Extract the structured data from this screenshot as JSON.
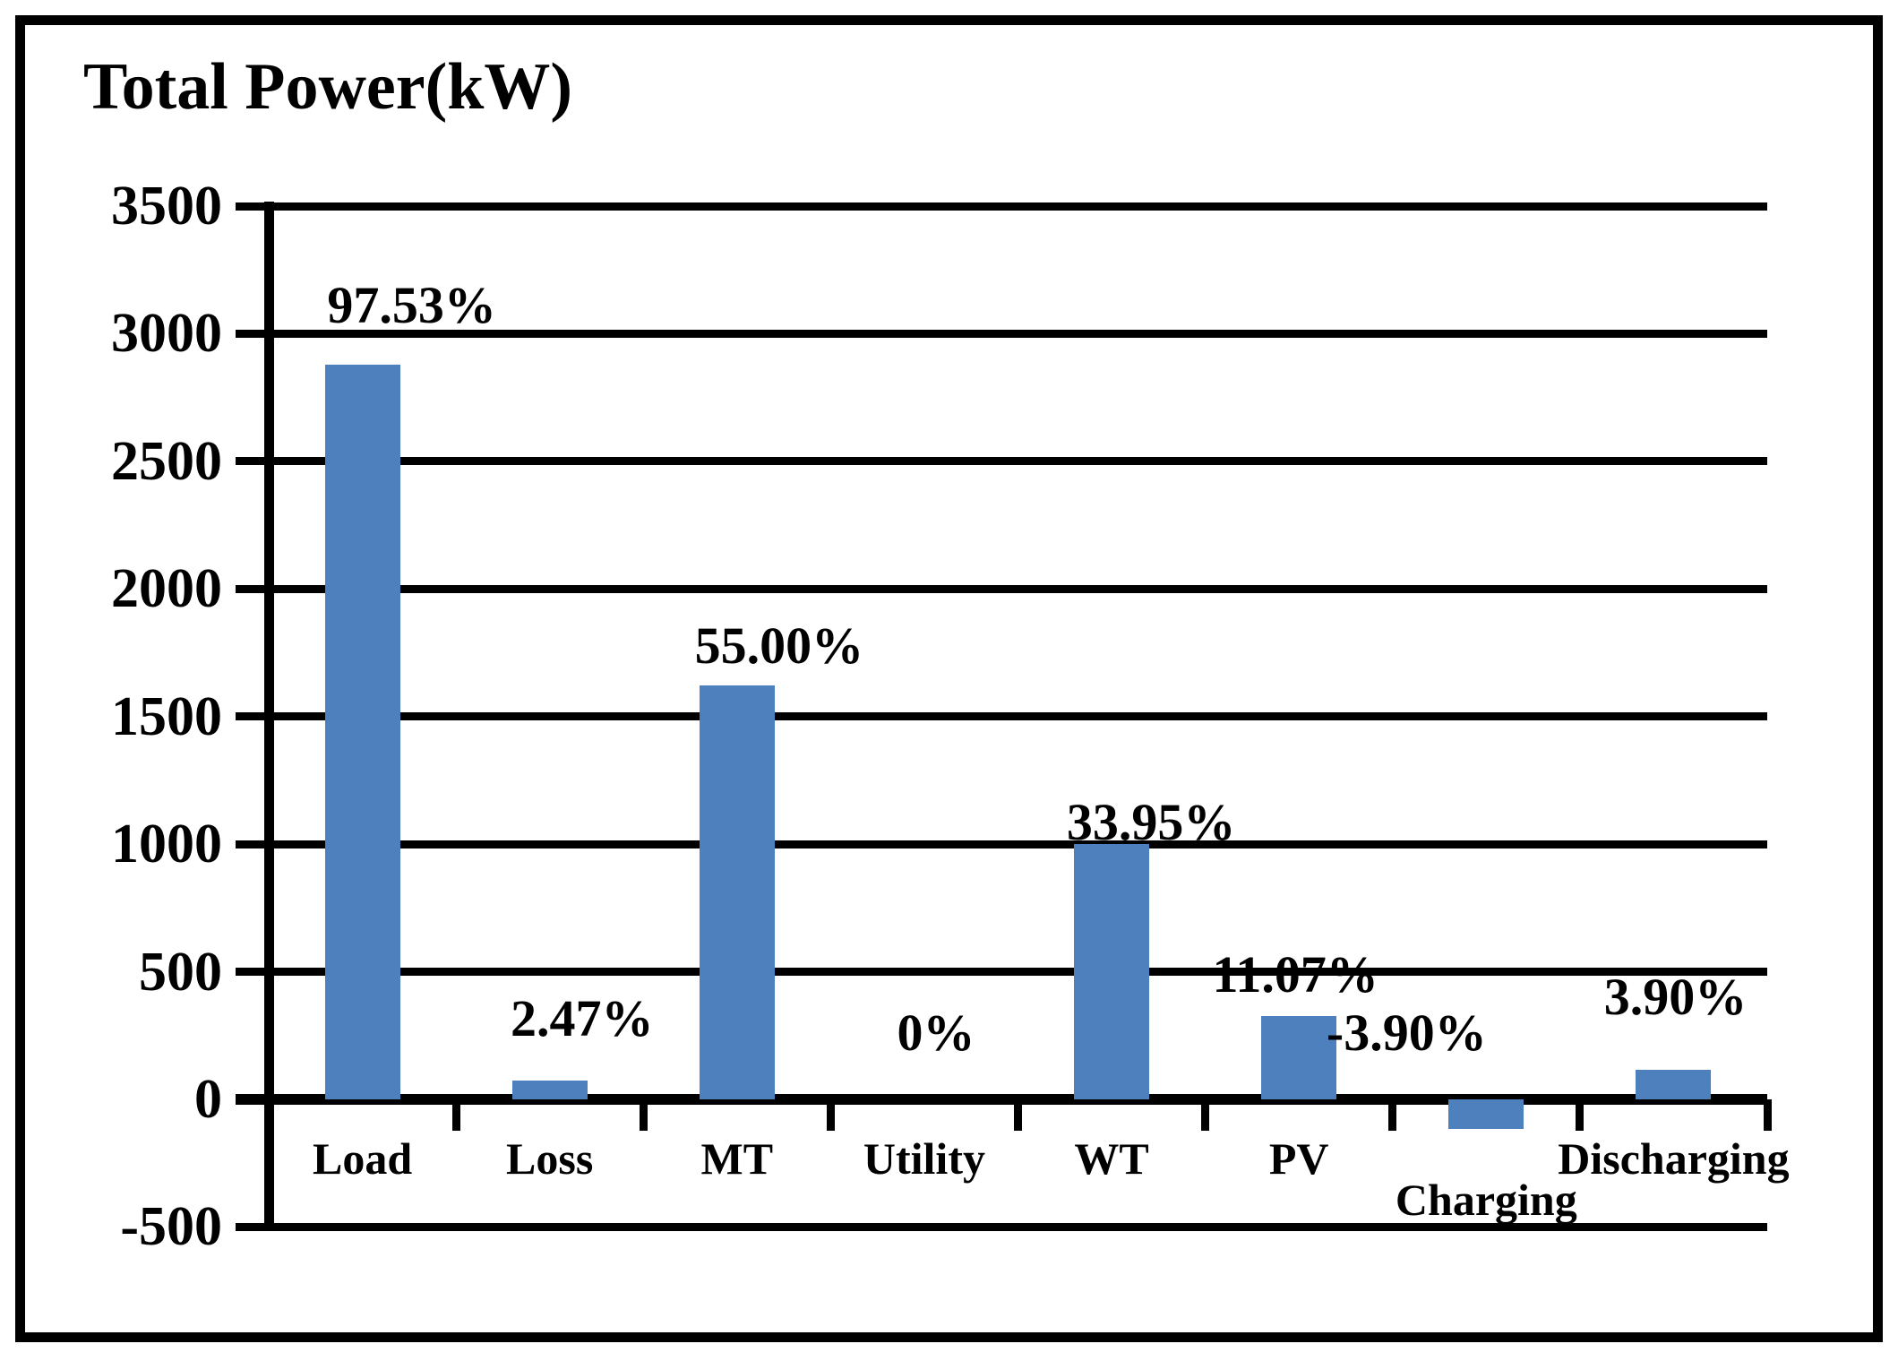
{
  "title": "Total Power(kW)",
  "chart_data": {
    "type": "bar",
    "title": "Total Power(kW)",
    "categories": [
      "Load",
      "Loss",
      "MT",
      "Utility",
      "WT",
      "PV",
      "Charging",
      "Discharging"
    ],
    "values": [
      2877,
      73,
      1623,
      0,
      1002,
      327,
      -115,
      115
    ],
    "bar_labels": [
      "97.53%",
      "2.47%",
      "55.00%",
      "0%",
      "33.95%",
      "11.07%",
      "-3.90%",
      "3.90%"
    ],
    "units": "kW",
    "xlabel": "",
    "ylabel": "Total Power(kW)",
    "ylim": [
      -500,
      3500
    ],
    "ytick_interval": 500,
    "yticks": [
      3500,
      3000,
      2500,
      2000,
      1500,
      1000,
      500,
      0,
      -500
    ],
    "grid": true,
    "legend": false,
    "bar_color": "#4E80BE",
    "axis_color": "#000000",
    "background_color": "#FFFFFF"
  }
}
